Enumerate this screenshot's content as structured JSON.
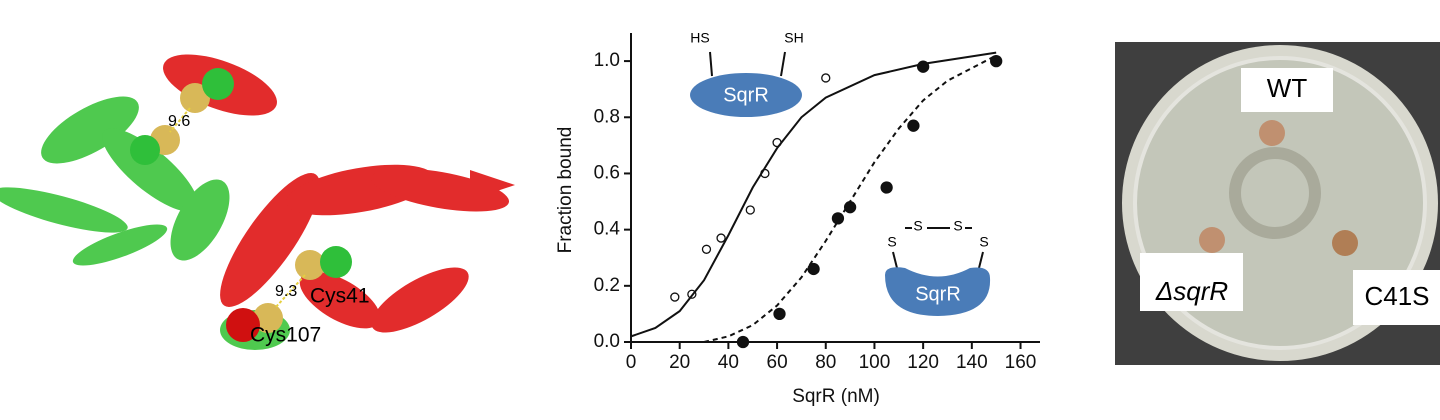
{
  "structure_labels": {
    "distance_top": "9.6",
    "distance_bottom": "9.3",
    "residue_a": "Cys41",
    "residue_b": "Cys107"
  },
  "chart_data": {
    "type": "scatter",
    "x_label": "SqrR (nM)",
    "y_label": "Fraction bound",
    "xlim": [
      0,
      168
    ],
    "ylim": [
      0,
      1.1
    ],
    "xticks": [
      0,
      20,
      40,
      60,
      80,
      100,
      120,
      140,
      160
    ],
    "yticks": [
      {
        "value": 0,
        "label": "0.0"
      },
      0.2,
      0.4,
      0.6,
      0.8,
      {
        "value": 1,
        "label": "1.0"
      }
    ],
    "series": [
      {
        "marker": "open",
        "color": "#111111",
        "x": [
          18,
          25,
          31,
          37,
          49,
          55,
          60,
          80,
          150
        ],
        "values": [
          0.16,
          0.17,
          0.33,
          0.37,
          0.47,
          0.6,
          0.71,
          0.94,
          1.0
        ]
      },
      {
        "marker": "filled",
        "color": "#111111",
        "x": [
          46,
          61,
          75,
          85,
          90,
          105,
          116,
          120,
          150
        ],
        "values": [
          0.0,
          0.1,
          0.26,
          0.44,
          0.48,
          0.55,
          0.77,
          0.98,
          1.0
        ]
      },
      {
        "marker": "none",
        "line": "solid",
        "color": "#111111",
        "x": [
          0,
          10,
          20,
          30,
          40,
          50,
          60,
          70,
          80,
          100,
          120,
          150
        ],
        "values": [
          0.02,
          0.05,
          0.11,
          0.22,
          0.38,
          0.55,
          0.69,
          0.8,
          0.87,
          0.95,
          0.99,
          1.03
        ]
      },
      {
        "marker": "none",
        "line": "dashed",
        "color": "#111111",
        "x": [
          30,
          40,
          50,
          60,
          70,
          80,
          90,
          100,
          110,
          120,
          130,
          150
        ],
        "values": [
          0.0,
          0.02,
          0.06,
          0.13,
          0.23,
          0.36,
          0.5,
          0.64,
          0.76,
          0.86,
          0.93,
          1.02
        ]
      }
    ],
    "annotations": {
      "reduced": {
        "left_group": "HS",
        "right_group": "SH",
        "protein": "SqrR"
      },
      "oxidized": {
        "s1": "S",
        "s2": "S",
        "s3": "S",
        "s4": "S",
        "protein": "SqrR"
      }
    }
  },
  "plate_labels": {
    "top": "WT",
    "left": "ΔsqrR",
    "right": "C41S"
  }
}
